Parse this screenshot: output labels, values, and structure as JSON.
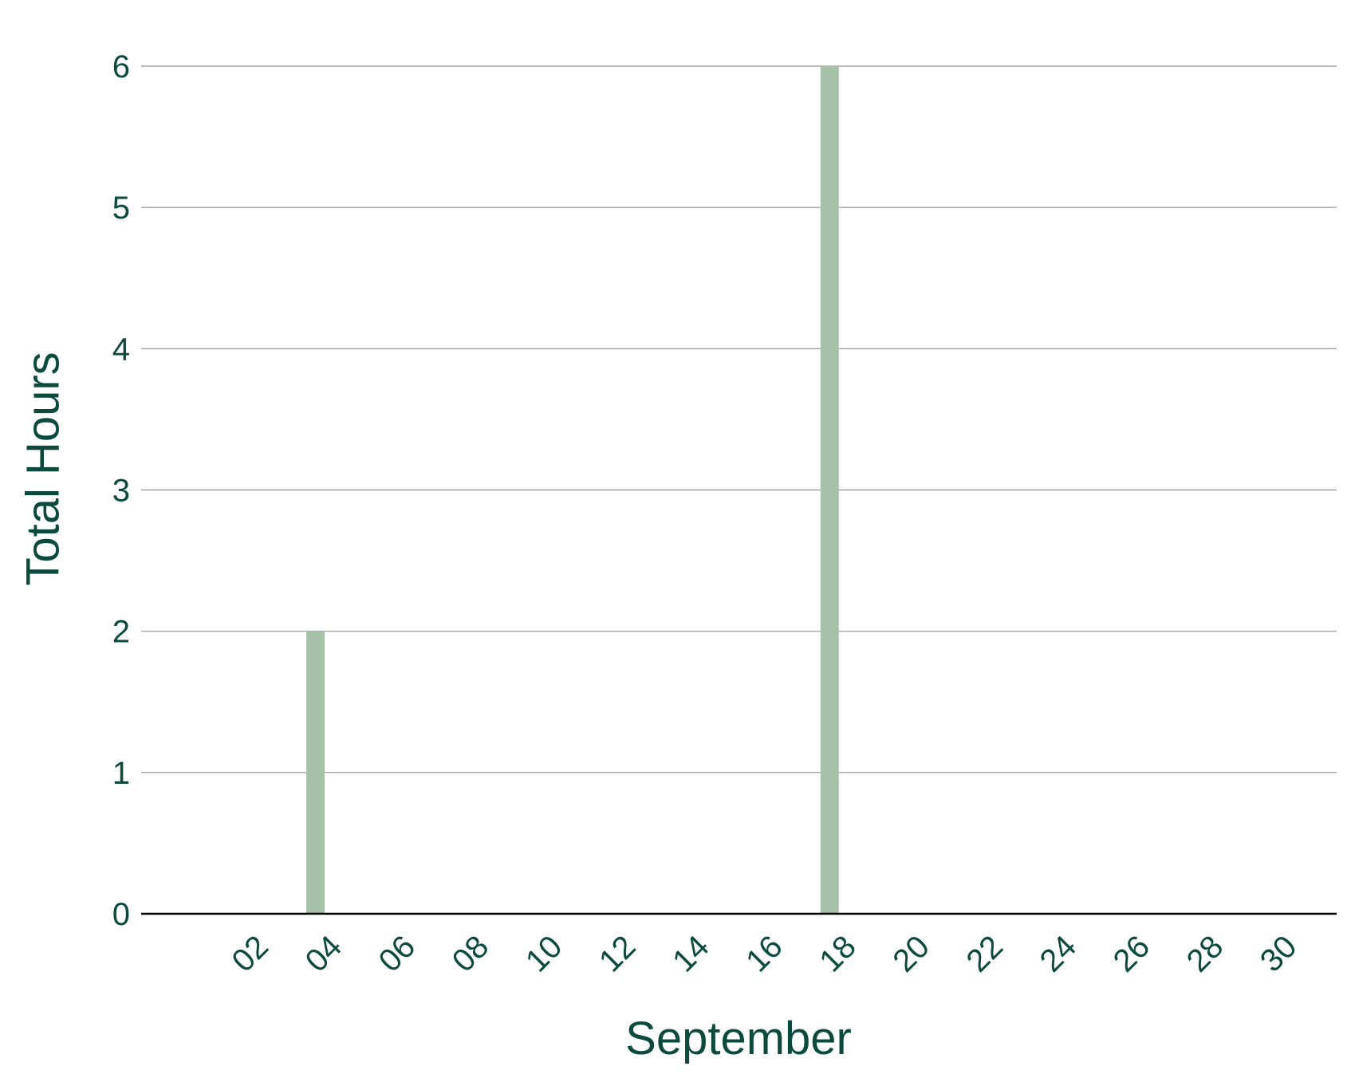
{
  "colors": {
    "text": "#0d4a3e",
    "bar": "#a5c2a9",
    "grid": "#8f8f8f",
    "axis": "#000000",
    "background": "#ffffff"
  },
  "chart_data": {
    "type": "bar",
    "title": "",
    "xlabel": "September",
    "ylabel": "Total Hours",
    "x_tick_labels": [
      "02",
      "04",
      "06",
      "08",
      "10",
      "12",
      "14",
      "16",
      "18",
      "20",
      "22",
      "24",
      "26",
      "28",
      "30"
    ],
    "y_ticks": [
      0,
      1,
      2,
      3,
      4,
      5,
      6
    ],
    "ylim": [
      0,
      6
    ],
    "xlim": [
      1,
      30
    ],
    "grid": "horizontal",
    "legend": "none",
    "series": [
      {
        "points": [
          {
            "x": "04",
            "y": 2
          },
          {
            "x": "18",
            "y": 6
          }
        ]
      }
    ]
  }
}
